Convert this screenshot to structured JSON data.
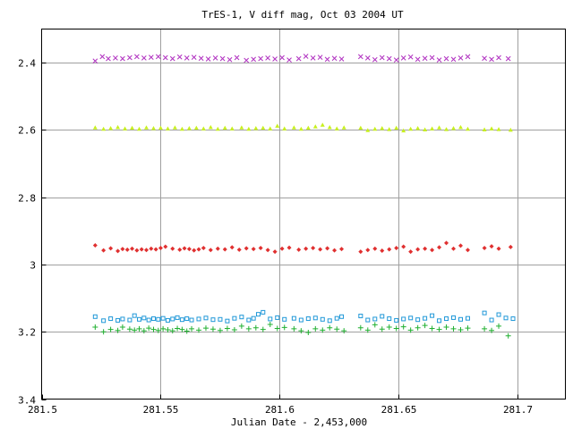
{
  "chart_data": {
    "type": "scatter",
    "title": "TrES-1, V diff mag, Oct 03 2004 UT",
    "xlabel": "Julian Date - 2,453,000",
    "ylabel": "",
    "xlim": [
      281.5,
      281.72
    ],
    "ylim": [
      3.4,
      2.3
    ],
    "y_inverted": true,
    "grid": true,
    "x_ticks": [
      281.5,
      281.55,
      281.6,
      281.65,
      281.7
    ],
    "x_tick_labels": [
      "281.5",
      "281.55",
      "281.6",
      "281.65",
      "281.7"
    ],
    "y_ticks": [
      2.4,
      2.6,
      2.8,
      3.0,
      3.2,
      3.4
    ],
    "y_tick_labels": [
      "2.4",
      "2.6",
      "2.8",
      "3",
      "3.2",
      "3.4"
    ],
    "series": [
      {
        "marker": "cross",
        "color": "#b030c0",
        "x": [
          281.5225,
          281.5255,
          281.528,
          281.531,
          281.534,
          281.537,
          281.54,
          281.543,
          281.546,
          281.549,
          281.552,
          281.555,
          281.558,
          281.561,
          281.564,
          281.567,
          281.57,
          281.573,
          281.576,
          281.579,
          281.582,
          281.586,
          281.589,
          281.592,
          281.595,
          281.598,
          281.601,
          281.604,
          281.608,
          281.611,
          281.614,
          281.617,
          281.62,
          281.623,
          281.626,
          281.634,
          281.637,
          281.64,
          281.643,
          281.646,
          281.649,
          281.652,
          281.655,
          281.658,
          281.661,
          281.664,
          281.667,
          281.67,
          281.673,
          281.676,
          281.679,
          281.686,
          281.689,
          281.692,
          281.696
        ],
        "y": [
          2.395,
          2.382,
          2.388,
          2.386,
          2.388,
          2.385,
          2.382,
          2.386,
          2.384,
          2.382,
          2.385,
          2.388,
          2.383,
          2.386,
          2.384,
          2.387,
          2.389,
          2.386,
          2.388,
          2.391,
          2.385,
          2.393,
          2.39,
          2.388,
          2.386,
          2.389,
          2.385,
          2.392,
          2.388,
          2.381,
          2.386,
          2.384,
          2.39,
          2.387,
          2.389,
          2.382,
          2.386,
          2.391,
          2.385,
          2.388,
          2.392,
          2.386,
          2.383,
          2.39,
          2.387,
          2.385,
          2.392,
          2.388,
          2.39,
          2.386,
          2.382,
          2.387,
          2.39,
          2.385,
          2.388
        ]
      },
      {
        "marker": "triangle",
        "color": "#c8f020",
        "x": [
          281.5225,
          281.526,
          281.529,
          281.532,
          281.535,
          281.538,
          281.541,
          281.544,
          281.547,
          281.55,
          281.553,
          281.556,
          281.559,
          281.562,
          281.565,
          281.568,
          281.571,
          281.574,
          281.577,
          281.58,
          281.584,
          281.587,
          281.59,
          281.593,
          281.596,
          281.599,
          281.602,
          281.606,
          281.609,
          281.612,
          281.615,
          281.618,
          281.621,
          281.624,
          281.627,
          281.634,
          281.637,
          281.64,
          281.643,
          281.646,
          281.649,
          281.652,
          281.655,
          281.658,
          281.661,
          281.664,
          281.667,
          281.67,
          281.673,
          281.676,
          281.679,
          281.686,
          281.689,
          281.692,
          281.697
        ],
        "y": [
          2.593,
          2.597,
          2.595,
          2.592,
          2.596,
          2.594,
          2.597,
          2.593,
          2.595,
          2.594,
          2.596,
          2.593,
          2.597,
          2.595,
          2.594,
          2.596,
          2.592,
          2.597,
          2.594,
          2.596,
          2.593,
          2.597,
          2.595,
          2.594,
          2.596,
          2.588,
          2.596,
          2.593,
          2.597,
          2.594,
          2.59,
          2.585,
          2.592,
          2.596,
          2.593,
          2.594,
          2.601,
          2.597,
          2.595,
          2.598,
          2.594,
          2.602,
          2.597,
          2.595,
          2.599,
          2.596,
          2.593,
          2.598,
          2.595,
          2.592,
          2.597,
          2.599,
          2.596,
          2.598,
          2.6
        ]
      },
      {
        "marker": "diamond",
        "color": "#e03030",
        "x": [
          281.5225,
          281.526,
          281.529,
          281.532,
          281.534,
          281.536,
          281.538,
          281.54,
          281.542,
          281.544,
          281.546,
          281.548,
          281.55,
          281.552,
          281.555,
          281.558,
          281.56,
          281.562,
          281.564,
          281.566,
          281.568,
          281.571,
          281.574,
          281.577,
          281.58,
          281.583,
          281.586,
          281.589,
          281.592,
          281.595,
          281.598,
          281.601,
          281.604,
          281.608,
          281.611,
          281.614,
          281.617,
          281.62,
          281.623,
          281.626,
          281.634,
          281.637,
          281.64,
          281.643,
          281.646,
          281.649,
          281.652,
          281.655,
          281.658,
          281.661,
          281.664,
          281.667,
          281.67,
          281.673,
          281.676,
          281.679,
          281.686,
          281.689,
          281.692,
          281.697
        ],
        "y": [
          2.943,
          2.958,
          2.952,
          2.96,
          2.954,
          2.956,
          2.953,
          2.958,
          2.955,
          2.957,
          2.953,
          2.955,
          2.951,
          2.947,
          2.953,
          2.956,
          2.952,
          2.954,
          2.958,
          2.955,
          2.951,
          2.957,
          2.953,
          2.955,
          2.949,
          2.956,
          2.952,
          2.954,
          2.951,
          2.957,
          2.962,
          2.953,
          2.95,
          2.956,
          2.953,
          2.951,
          2.955,
          2.952,
          2.958,
          2.954,
          2.962,
          2.957,
          2.953,
          2.959,
          2.955,
          2.951,
          2.947,
          2.962,
          2.955,
          2.953,
          2.957,
          2.949,
          2.936,
          2.953,
          2.944,
          2.957,
          2.951,
          2.946,
          2.953,
          2.948
        ]
      },
      {
        "marker": "square",
        "color": "#2098d8",
        "x": [
          281.5225,
          281.526,
          281.529,
          281.532,
          281.534,
          281.537,
          281.539,
          281.541,
          281.543,
          281.545,
          281.547,
          281.549,
          281.551,
          281.553,
          281.555,
          281.557,
          281.559,
          281.561,
          281.563,
          281.566,
          281.569,
          281.572,
          281.575,
          281.578,
          281.581,
          281.584,
          281.587,
          281.589,
          281.591,
          281.593,
          281.596,
          281.599,
          281.602,
          281.606,
          281.609,
          281.612,
          281.615,
          281.618,
          281.621,
          281.624,
          281.626,
          281.634,
          281.637,
          281.64,
          281.643,
          281.646,
          281.649,
          281.652,
          281.655,
          281.658,
          281.661,
          281.664,
          281.667,
          281.67,
          281.673,
          281.676,
          281.679,
          281.686,
          281.689,
          281.692,
          281.695,
          281.698
        ],
        "y": [
          3.155,
          3.167,
          3.161,
          3.166,
          3.162,
          3.165,
          3.152,
          3.163,
          3.159,
          3.165,
          3.161,
          3.163,
          3.16,
          3.166,
          3.162,
          3.158,
          3.164,
          3.161,
          3.165,
          3.162,
          3.159,
          3.164,
          3.163,
          3.168,
          3.16,
          3.156,
          3.165,
          3.16,
          3.148,
          3.142,
          3.162,
          3.158,
          3.163,
          3.16,
          3.165,
          3.161,
          3.159,
          3.163,
          3.167,
          3.16,
          3.155,
          3.153,
          3.165,
          3.162,
          3.154,
          3.161,
          3.166,
          3.162,
          3.159,
          3.164,
          3.16,
          3.152,
          3.167,
          3.161,
          3.158,
          3.163,
          3.16,
          3.144,
          3.165,
          3.149,
          3.159,
          3.161
        ]
      },
      {
        "marker": "plus",
        "color": "#20b030",
        "x": [
          281.5225,
          281.526,
          281.529,
          281.532,
          281.534,
          281.537,
          281.539,
          281.541,
          281.543,
          281.545,
          281.547,
          281.549,
          281.551,
          281.553,
          281.555,
          281.557,
          281.559,
          281.561,
          281.563,
          281.566,
          281.569,
          281.572,
          281.575,
          281.578,
          281.581,
          281.584,
          281.587,
          281.59,
          281.593,
          281.596,
          281.599,
          281.602,
          281.606,
          281.609,
          281.612,
          281.615,
          281.618,
          281.621,
          281.624,
          281.627,
          281.634,
          281.637,
          281.64,
          281.643,
          281.646,
          281.649,
          281.652,
          281.655,
          281.658,
          281.661,
          281.664,
          281.667,
          281.67,
          281.673,
          281.676,
          281.679,
          281.686,
          281.689,
          281.692,
          281.696
        ],
        "y": [
          3.186,
          3.2,
          3.193,
          3.196,
          3.186,
          3.192,
          3.195,
          3.191,
          3.197,
          3.189,
          3.193,
          3.196,
          3.191,
          3.194,
          3.197,
          3.19,
          3.193,
          3.198,
          3.191,
          3.195,
          3.189,
          3.192,
          3.196,
          3.19,
          3.194,
          3.183,
          3.191,
          3.188,
          3.193,
          3.178,
          3.19,
          3.187,
          3.191,
          3.197,
          3.202,
          3.191,
          3.195,
          3.188,
          3.192,
          3.197,
          3.188,
          3.195,
          3.179,
          3.192,
          3.186,
          3.19,
          3.185,
          3.195,
          3.188,
          3.181,
          3.19,
          3.193,
          3.186,
          3.191,
          3.194,
          3.189,
          3.191,
          3.196,
          3.183,
          3.212
        ]
      }
    ]
  }
}
